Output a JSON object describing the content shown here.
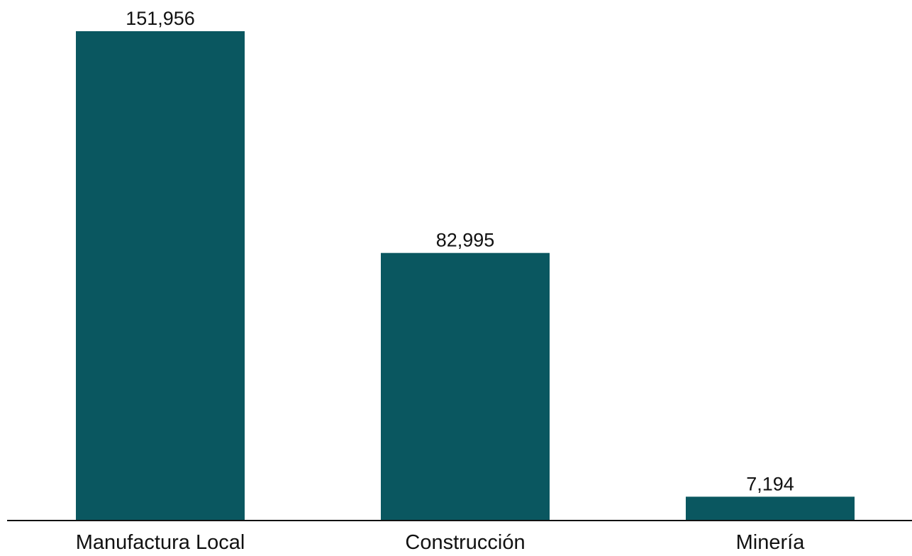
{
  "chart_data": {
    "type": "bar",
    "categories": [
      "Manufactura Local",
      "Construcción",
      "Minería"
    ],
    "values": [
      151956,
      82995,
      7194
    ],
    "value_labels": [
      "151,956",
      "82,995",
      "7,194"
    ],
    "ylim": [
      0,
      151956
    ],
    "grid": false,
    "legend": "none",
    "bar_color": "#0a5760",
    "axis_color": "#111111"
  }
}
